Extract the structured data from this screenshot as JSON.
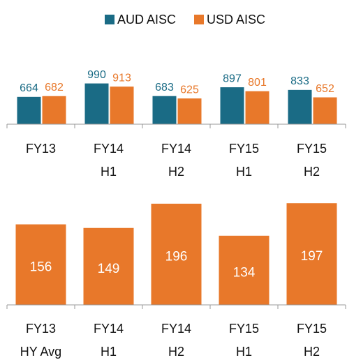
{
  "chart_data": [
    {
      "type": "grouped_bar",
      "categories": [
        [
          "FY13"
        ],
        [
          "FY14",
          "H1"
        ],
        [
          "FY14",
          "H2"
        ],
        [
          "FY15",
          "H1"
        ],
        [
          "FY15",
          "H2"
        ]
      ],
      "series": [
        {
          "name": "AUD AISC",
          "color": "#1a6b85",
          "values": [
            664,
            990,
            683,
            897,
            833
          ]
        },
        {
          "name": "USD AISC",
          "color": "#e8782a",
          "values": [
            682,
            913,
            625,
            801,
            652
          ]
        }
      ],
      "ylim": [
        0,
        2000
      ],
      "legend": "top"
    },
    {
      "type": "bar",
      "categories": [
        [
          "FY13",
          "HY Avg"
        ],
        [
          "FY14",
          "H1"
        ],
        [
          "FY14",
          "H2"
        ],
        [
          "FY15",
          "H1"
        ],
        [
          "FY15",
          "H2"
        ]
      ],
      "values": [
        156,
        149,
        196,
        134,
        197
      ],
      "color": "#e8782a",
      "ylim": [
        0,
        250
      ]
    }
  ]
}
